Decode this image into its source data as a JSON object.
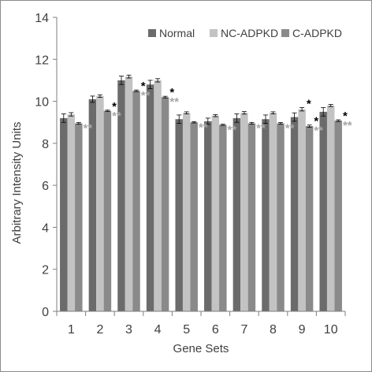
{
  "chart_data": {
    "type": "bar",
    "title": "",
    "xlabel": "Gene Sets",
    "ylabel": "Arbitrary Intensity Units",
    "ylim": [
      0,
      14
    ],
    "yticks": [
      0,
      2,
      4,
      6,
      8,
      10,
      12,
      14
    ],
    "categories": [
      "1",
      "2",
      "3",
      "4",
      "5",
      "6",
      "7",
      "8",
      "9",
      "10"
    ],
    "grid": false,
    "legend_position": "top-right",
    "series": [
      {
        "name": "Normal",
        "color": "#6b6b6b",
        "values": [
          9.2,
          10.1,
          11.0,
          10.8,
          9.15,
          9.05,
          9.2,
          9.15,
          9.25,
          9.5
        ],
        "errors": [
          0.2,
          0.15,
          0.2,
          0.2,
          0.2,
          0.15,
          0.2,
          0.2,
          0.2,
          0.2
        ]
      },
      {
        "name": "NC-ADPKD",
        "color": "#c3c3c3",
        "values": [
          9.38,
          10.25,
          11.18,
          11.0,
          9.45,
          9.32,
          9.45,
          9.45,
          9.62,
          9.8
        ],
        "errors": [
          0.08,
          0.06,
          0.07,
          0.08,
          0.05,
          0.05,
          0.06,
          0.05,
          0.08,
          0.05
        ]
      },
      {
        "name": "C-ADPKD",
        "color": "#8a8a8a",
        "values": [
          8.95,
          9.55,
          10.5,
          10.2,
          9.0,
          8.88,
          8.95,
          8.95,
          8.82,
          9.08
        ],
        "errors": [
          0.04,
          0.03,
          0.04,
          0.04,
          0.03,
          0.03,
          0.04,
          0.04,
          0.05,
          0.04
        ]
      }
    ],
    "annotations": [
      {
        "category": "1",
        "series": "C-ADPKD",
        "text": "**",
        "color": "#a6a6a6"
      },
      {
        "category": "2",
        "series": "C-ADPKD",
        "text": "*",
        "color": "#000000"
      },
      {
        "category": "2",
        "series": "C-ADPKD",
        "text": "**",
        "color": "#a6a6a6"
      },
      {
        "category": "3",
        "series": "C-ADPKD",
        "text": "*",
        "color": "#000000"
      },
      {
        "category": "3",
        "series": "C-ADPKD",
        "text": "**",
        "color": "#a6a6a6"
      },
      {
        "category": "4",
        "series": "C-ADPKD",
        "text": "*",
        "color": "#000000"
      },
      {
        "category": "4",
        "series": "C-ADPKD",
        "text": "**",
        "color": "#a6a6a6"
      },
      {
        "category": "5",
        "series": "C-ADPKD",
        "text": "**",
        "color": "#a6a6a6"
      },
      {
        "category": "6",
        "series": "C-ADPKD",
        "text": "**",
        "color": "#a6a6a6"
      },
      {
        "category": "7",
        "series": "C-ADPKD",
        "text": "**",
        "color": "#a6a6a6"
      },
      {
        "category": "8",
        "series": "C-ADPKD",
        "text": "**",
        "color": "#a6a6a6"
      },
      {
        "category": "9",
        "series": "NC-ADPKD",
        "text": "*",
        "color": "#000000"
      },
      {
        "category": "9",
        "series": "C-ADPKD",
        "text": "*",
        "color": "#000000"
      },
      {
        "category": "9",
        "series": "C-ADPKD",
        "text": "**",
        "color": "#a6a6a6"
      },
      {
        "category": "10",
        "series": "C-ADPKD",
        "text": "*",
        "color": "#000000"
      },
      {
        "category": "10",
        "series": "C-ADPKD",
        "text": "**",
        "color": "#a6a6a6"
      }
    ]
  }
}
